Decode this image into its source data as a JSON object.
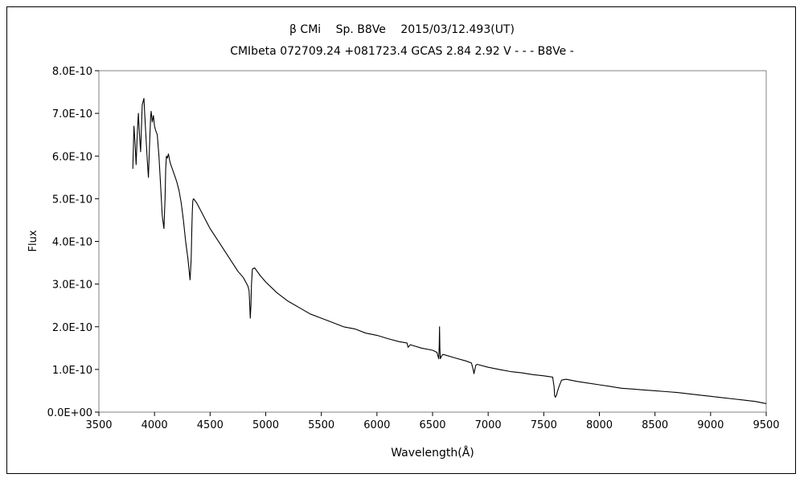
{
  "chart_data": {
    "type": "line",
    "title": "β CMi　 Sp. B8Ve　 2015/03/12.493(UT)",
    "subtitle": "CMIbeta 072709.24 +081723.4 GCAS 2.84 2.92 V - - - B8Ve -",
    "xlabel": "Wavelength(Å)",
    "ylabel": "Flux",
    "xlim": [
      3500,
      9500
    ],
    "ylim": [
      0,
      8e-10
    ],
    "x_ticks": [
      3500,
      4000,
      4500,
      5000,
      5500,
      6000,
      6500,
      7000,
      7500,
      8000,
      8500,
      9000,
      9500
    ],
    "x_tick_labels": [
      "3500",
      "4000",
      "4500",
      "5000",
      "5500",
      "6000",
      "6500",
      "7000",
      "7500",
      "8000",
      "8500",
      "9000",
      "9500"
    ],
    "y_ticks": [
      0,
      1e-10,
      2e-10,
      3e-10,
      4e-10,
      5e-10,
      6e-10,
      7e-10,
      8e-10
    ],
    "y_tick_labels": [
      "0.0E+00",
      "1.0E-10",
      "2.0E-10",
      "3.0E-10",
      "4.0E-10",
      "5.0E-10",
      "6.0E-10",
      "7.0E-10",
      "8.0E-10"
    ],
    "grid": false,
    "legend": "none",
    "series": [
      {
        "color": "#000000",
        "x": [
          3805,
          3815,
          3825,
          3835,
          3845,
          3855,
          3865,
          3875,
          3890,
          3905,
          3920,
          3935,
          3945,
          3955,
          3965,
          3970,
          3980,
          3990,
          4000,
          4010,
          4025,
          4040,
          4055,
          4070,
          4085,
          4095,
          4101,
          4107,
          4115,
          4125,
          4140,
          4160,
          4180,
          4200,
          4220,
          4240,
          4260,
          4280,
          4300,
          4320,
          4330,
          4336,
          4340,
          4344,
          4350,
          4360,
          4380,
          4400,
          4450,
          4500,
          4550,
          4600,
          4650,
          4700,
          4750,
          4800,
          4820,
          4840,
          4850,
          4855,
          4861,
          4867,
          4872,
          4880,
          4900,
          4950,
          5000,
          5100,
          5200,
          5300,
          5400,
          5500,
          5600,
          5700,
          5800,
          5900,
          6000,
          6100,
          6200,
          6270,
          6280,
          6290,
          6300,
          6400,
          6500,
          6540,
          6550,
          6556,
          6560,
          6563,
          6566,
          6570,
          6578,
          6590,
          6600,
          6700,
          6800,
          6850,
          6865,
          6872,
          6880,
          6890,
          6900,
          7000,
          7100,
          7200,
          7300,
          7400,
          7500,
          7580,
          7592,
          7598,
          7605,
          7615,
          7625,
          7640,
          7660,
          7700,
          7800,
          7900,
          8000,
          8100,
          8200,
          8300,
          8400,
          8500,
          8600,
          8700,
          8800,
          8900,
          9000,
          9100,
          9200,
          9300,
          9400,
          9500
        ],
        "values": [
          5.7e-10,
          6.7e-10,
          6.3e-10,
          5.8e-10,
          6.5e-10,
          7e-10,
          6.5e-10,
          6.1e-10,
          7.2e-10,
          7.35e-10,
          6.6e-10,
          5.9e-10,
          5.5e-10,
          6.2e-10,
          6.9e-10,
          7.05e-10,
          6.8e-10,
          6.95e-10,
          6.7e-10,
          6.6e-10,
          6.5e-10,
          6e-10,
          5.3e-10,
          4.6e-10,
          4.3e-10,
          5e-10,
          5.7e-10,
          6e-10,
          5.95e-10,
          6.05e-10,
          5.85e-10,
          5.7e-10,
          5.55e-10,
          5.4e-10,
          5.2e-10,
          4.9e-10,
          4.5e-10,
          4e-10,
          3.6e-10,
          3.1e-10,
          3.6e-10,
          4.3e-10,
          4.7e-10,
          4.95e-10,
          5e-10,
          4.97e-10,
          4.9e-10,
          4.8e-10,
          4.55e-10,
          4.3e-10,
          4.1e-10,
          3.9e-10,
          3.7e-10,
          3.5e-10,
          3.3e-10,
          3.15e-10,
          3.05e-10,
          2.95e-10,
          2.85e-10,
          2.6e-10,
          2.2e-10,
          2.5e-10,
          3e-10,
          3.35e-10,
          3.38e-10,
          3.2e-10,
          3.05e-10,
          2.8e-10,
          2.6e-10,
          2.45e-10,
          2.3e-10,
          2.2e-10,
          2.1e-10,
          2e-10,
          1.95e-10,
          1.85e-10,
          1.8e-10,
          1.72e-10,
          1.65e-10,
          1.62e-10,
          1.52e-10,
          1.55e-10,
          1.58e-10,
          1.5e-10,
          1.45e-10,
          1.4e-10,
          1.3e-10,
          1.25e-10,
          1.55e-10,
          2e-10,
          1.5e-10,
          1.25e-10,
          1.3e-10,
          1.35e-10,
          1.35e-10,
          1.27e-10,
          1.2e-10,
          1.15e-10,
          1e-10,
          9e-11,
          1e-10,
          1.1e-10,
          1.12e-10,
          1.05e-10,
          1e-10,
          9.5e-11,
          9.2e-11,
          8.8e-11,
          8.5e-11,
          8.2e-11,
          6e-11,
          3.8e-11,
          3.5e-11,
          4e-11,
          5e-11,
          6.2e-11,
          7.5e-11,
          7.7e-11,
          7.2e-11,
          6.8e-11,
          6.4e-11,
          6e-11,
          5.6e-11,
          5.4e-11,
          5.2e-11,
          5e-11,
          4.8e-11,
          4.6e-11,
          4.3e-11,
          4e-11,
          3.7e-11,
          3.4e-11,
          3.1e-11,
          2.8e-11,
          2.5e-11,
          2e-11
        ]
      }
    ]
  }
}
